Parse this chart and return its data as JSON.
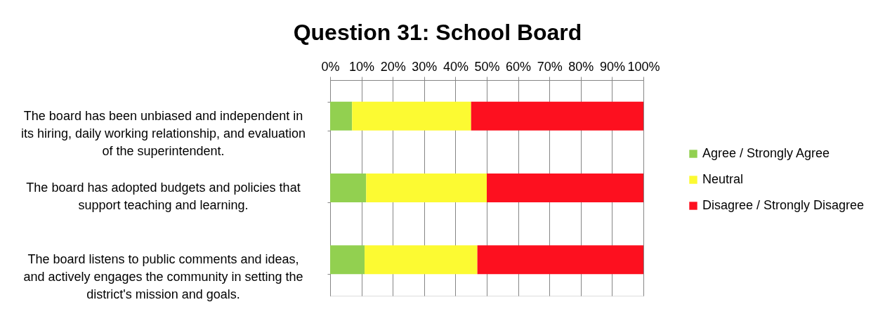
{
  "chart_data": {
    "type": "bar",
    "orientation": "horizontal",
    "stacked": true,
    "title": "Question 31:  School Board",
    "categories": [
      "The board has been unbiased and independent in its hiring, daily working relationship, and evaluation of the superintendent.",
      "The board has adopted budgets and policies that support teaching and learning.",
      "The board listens to public comments and ideas, and actively engages the community in setting the district's mission and goals."
    ],
    "series": [
      {
        "name": "Agree / Strongly Agree",
        "color": "#92d050",
        "values": [
          7,
          11.5,
          11
        ]
      },
      {
        "name": "Neutral",
        "color": "#fcfa32",
        "values": [
          38,
          38.5,
          36
        ]
      },
      {
        "name": "Disagree / Strongly Disagree",
        "color": "#fd101f",
        "values": [
          55,
          50,
          53
        ]
      }
    ],
    "xlim": [
      0,
      100
    ],
    "xticks": [
      {
        "value": 0,
        "label": "0%"
      },
      {
        "value": 10,
        "label": "10%"
      },
      {
        "value": 20,
        "label": "20%"
      },
      {
        "value": 30,
        "label": "30%"
      },
      {
        "value": 40,
        "label": "40%"
      },
      {
        "value": 50,
        "label": "50%"
      },
      {
        "value": 60,
        "label": "60%"
      },
      {
        "value": 70,
        "label": "70%"
      },
      {
        "value": 80,
        "label": "80%"
      },
      {
        "value": 90,
        "label": "90%"
      },
      {
        "value": 100,
        "label": "100%"
      }
    ],
    "grid": "x",
    "legend": "right"
  }
}
